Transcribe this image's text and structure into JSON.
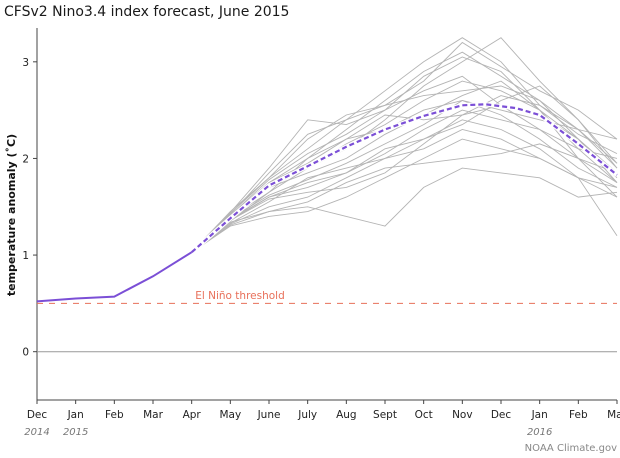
{
  "chart_data": {
    "type": "line",
    "title": "CFSv2 Nino3.4 index forecast, June 2015",
    "ylabel": "temperature anomaly (˚C)",
    "xlabel": "",
    "months": [
      "Dec",
      "Jan",
      "Feb",
      "Mar",
      "Apr",
      "May",
      "June",
      "July",
      "Aug",
      "Sept",
      "Oct",
      "Nov",
      "Dec",
      "Jan",
      "Feb",
      "Mar"
    ],
    "years": [
      {
        "label": "2014",
        "month_index": 0
      },
      {
        "label": "2015",
        "month_index": 1
      },
      {
        "label": "2016",
        "month_index": 13
      }
    ],
    "ylim": [
      -0.5,
      3.35
    ],
    "yticks": [
      0,
      1,
      2,
      3
    ],
    "xlim": [
      0,
      15
    ],
    "grid": false,
    "threshold": {
      "label": "El Niño threshold",
      "value": 0.5,
      "color": "#e8705a"
    },
    "zero_line_color": "#999999",
    "observed": {
      "name": "",
      "color": "#7b4fd6",
      "x": [
        0,
        1,
        2,
        3,
        4
      ],
      "y": [
        0.52,
        0.55,
        0.57,
        0.78,
        1.03
      ]
    },
    "ensemble_mean": {
      "name": "",
      "color": "#7b4fd6",
      "x": [
        4,
        5,
        6,
        7,
        8,
        9,
        10,
        11,
        11.6,
        12.4,
        13,
        14,
        15
      ],
      "y": [
        1.03,
        1.38,
        1.72,
        1.92,
        2.12,
        2.3,
        2.44,
        2.55,
        2.56,
        2.52,
        2.45,
        2.15,
        1.83
      ]
    },
    "ensemble_color": "#b4b4b4",
    "ensemble_x": [
      4,
      5,
      6,
      7,
      8,
      9,
      10,
      11,
      12,
      13,
      14,
      15
    ],
    "ensemble_members": [
      [
        1.03,
        1.45,
        1.8,
        2.1,
        2.4,
        2.7,
        3.0,
        3.25,
        3.0,
        2.55,
        2.3,
        1.9
      ],
      [
        1.03,
        1.4,
        1.75,
        2.0,
        2.3,
        2.6,
        2.9,
        3.1,
        2.85,
        2.6,
        2.2,
        1.8
      ],
      [
        1.03,
        1.38,
        1.7,
        1.9,
        2.1,
        2.4,
        2.75,
        3.0,
        3.25,
        2.8,
        2.4,
        1.95
      ],
      [
        1.03,
        1.42,
        1.85,
        2.25,
        2.4,
        2.55,
        2.8,
        3.2,
        2.95,
        2.7,
        2.5,
        2.2
      ],
      [
        1.03,
        1.35,
        1.65,
        1.9,
        2.15,
        2.35,
        2.6,
        2.8,
        2.7,
        2.5,
        2.2,
        1.85
      ],
      [
        1.03,
        1.36,
        1.6,
        1.75,
        1.85,
        2.05,
        2.3,
        2.5,
        2.4,
        2.3,
        2.1,
        2.0
      ],
      [
        1.03,
        1.32,
        1.5,
        1.6,
        1.8,
        2.0,
        2.2,
        2.4,
        2.3,
        2.1,
        1.8,
        1.6
      ],
      [
        1.03,
        1.3,
        1.4,
        1.45,
        1.6,
        1.8,
        2.0,
        2.2,
        2.1,
        2.0,
        1.8,
        1.7
      ],
      [
        1.03,
        1.34,
        1.45,
        1.5,
        1.4,
        1.3,
        1.7,
        1.9,
        1.85,
        1.8,
        1.6,
        1.65
      ],
      [
        1.03,
        1.33,
        1.55,
        1.8,
        1.9,
        2.0,
        2.1,
        2.3,
        2.2,
        2.0,
        1.8,
        1.2
      ],
      [
        1.03,
        1.41,
        1.75,
        1.95,
        2.2,
        2.3,
        2.5,
        2.6,
        2.5,
        2.4,
        2.3,
        2.2
      ],
      [
        1.03,
        1.39,
        1.65,
        2.0,
        2.2,
        2.45,
        2.4,
        2.45,
        2.55,
        2.45,
        2.2,
        1.75
      ],
      [
        1.03,
        1.44,
        1.9,
        2.4,
        2.35,
        2.5,
        2.7,
        2.85,
        2.55,
        2.3,
        2.0,
        1.85
      ],
      [
        1.03,
        1.37,
        1.6,
        1.7,
        1.85,
        2.1,
        2.2,
        2.35,
        2.6,
        2.75,
        2.4,
        1.9
      ],
      [
        1.03,
        1.43,
        1.8,
        2.2,
        2.45,
        2.55,
        2.65,
        2.7,
        2.75,
        2.6,
        2.3,
        1.95
      ],
      [
        1.03,
        1.31,
        1.45,
        1.55,
        1.75,
        1.9,
        1.95,
        2.0,
        2.05,
        2.15,
        2.0,
        1.75
      ],
      [
        1.03,
        1.4,
        1.7,
        1.85,
        2.0,
        2.25,
        2.45,
        2.65,
        2.8,
        2.5,
        2.0,
        1.6
      ],
      [
        1.03,
        1.38,
        1.62,
        1.78,
        1.95,
        2.15,
        2.35,
        2.6,
        2.45,
        2.2,
        1.9,
        1.7
      ],
      [
        1.03,
        1.36,
        1.58,
        1.65,
        1.7,
        1.85,
        2.15,
        2.45,
        2.65,
        2.55,
        2.25,
        2.05
      ],
      [
        1.03,
        1.41,
        1.78,
        2.05,
        2.25,
        2.5,
        2.85,
        3.05,
        2.9,
        2.5,
        2.1,
        1.75
      ]
    ],
    "credit": "NOAA Climate.gov"
  }
}
